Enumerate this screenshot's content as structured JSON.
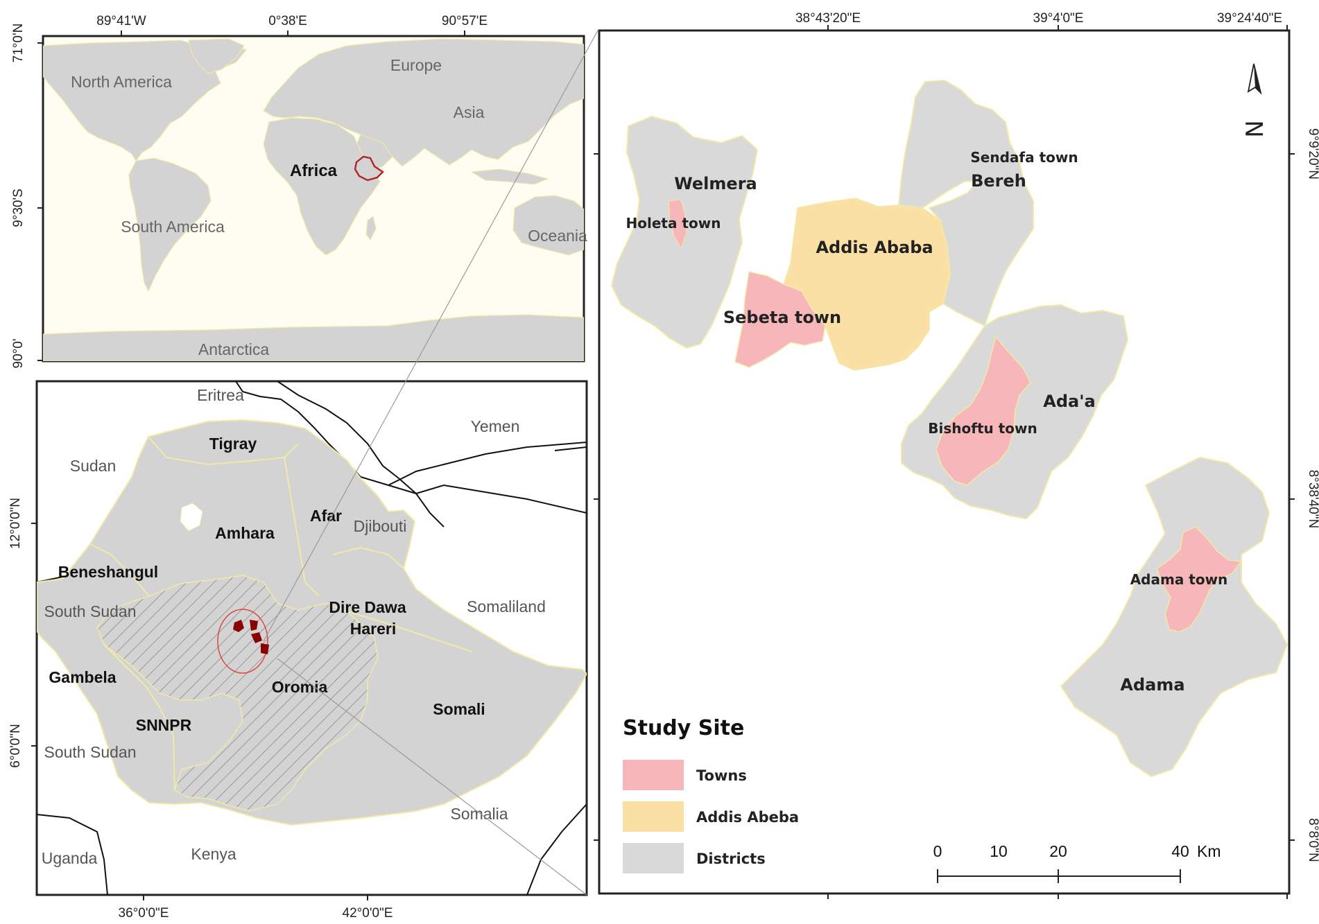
{
  "world_map": {
    "top_ticks": [
      "89°41'W",
      "0°38'E",
      "90°57'E"
    ],
    "left_ticks": [
      "71°0'N",
      "9°30'S",
      "90°0'"
    ],
    "labels": {
      "north_america": "North America",
      "europe": "Europe",
      "asia": "Asia",
      "africa": "Africa",
      "south_america": "South America",
      "oceania": "Oceania",
      "antarctica": "Antarctica"
    }
  },
  "ethiopia_map": {
    "bottom_ticks": [
      "36°0'0\"E",
      "42°0'0\"E"
    ],
    "left_ticks": [
      "12°0'0\"N",
      "6°0'0\"N"
    ],
    "countries": {
      "eritrea": "Eritrea",
      "yemen": "Yemen",
      "sudan": "Sudan",
      "djibouti": "Djibouti",
      "somaliland": "Somaliland",
      "south_sudan_1": "South Sudan",
      "south_sudan_2": "South Sudan",
      "somalia": "Somalia",
      "uganda": "Uganda",
      "kenya": "Kenya"
    },
    "regions": {
      "tigray": "Tigray",
      "afar": "Afar",
      "amhara": "Amhara",
      "beneshangul": "Beneshangul",
      "dire_dawa": "Dire Dawa",
      "hareri": "Hareri",
      "gambela": "Gambela",
      "oromia": "Oromia",
      "somali": "Somali",
      "snnpr": "SNNPR"
    }
  },
  "study_site_map": {
    "top_ticks": [
      "38°43'20\"E",
      "39°4'0\"E",
      "39°24'40\"E"
    ],
    "right_ticks": [
      "9°9'20\"N",
      "8°38'40\"N",
      "8°8'0\"N"
    ],
    "districts": {
      "welmera": "Welmera",
      "bereh": "Bereh",
      "addis_ababa": "Addis Ababa",
      "adaa": "Ada'a",
      "adama": "Adama"
    },
    "towns": {
      "holeta": "Holeta town",
      "sendafa": "Sendafa town",
      "sebeta": "Sebeta town",
      "bishoftu": "Bishoftu town",
      "adama": "Adama town"
    },
    "north_arrow": "N",
    "legend": {
      "title": "Study Site",
      "items": [
        {
          "label": "Towns",
          "color": "#f7b6b9"
        },
        {
          "label": "Addis Abeba",
          "color": "#fbe0a6"
        },
        {
          "label": "Districts",
          "color": "#d9d9d9"
        }
      ]
    },
    "scale_bar": {
      "labels": [
        "0",
        "10",
        "20",
        "40"
      ],
      "unit": "Km"
    }
  },
  "colors": {
    "land": "#d3d3d3",
    "district": "#d9d9d9",
    "town": "#f7b6b9",
    "addis": "#fbe0a6",
    "world_bg": "#fffdf2",
    "ethiopia_outline": "#b22222"
  }
}
